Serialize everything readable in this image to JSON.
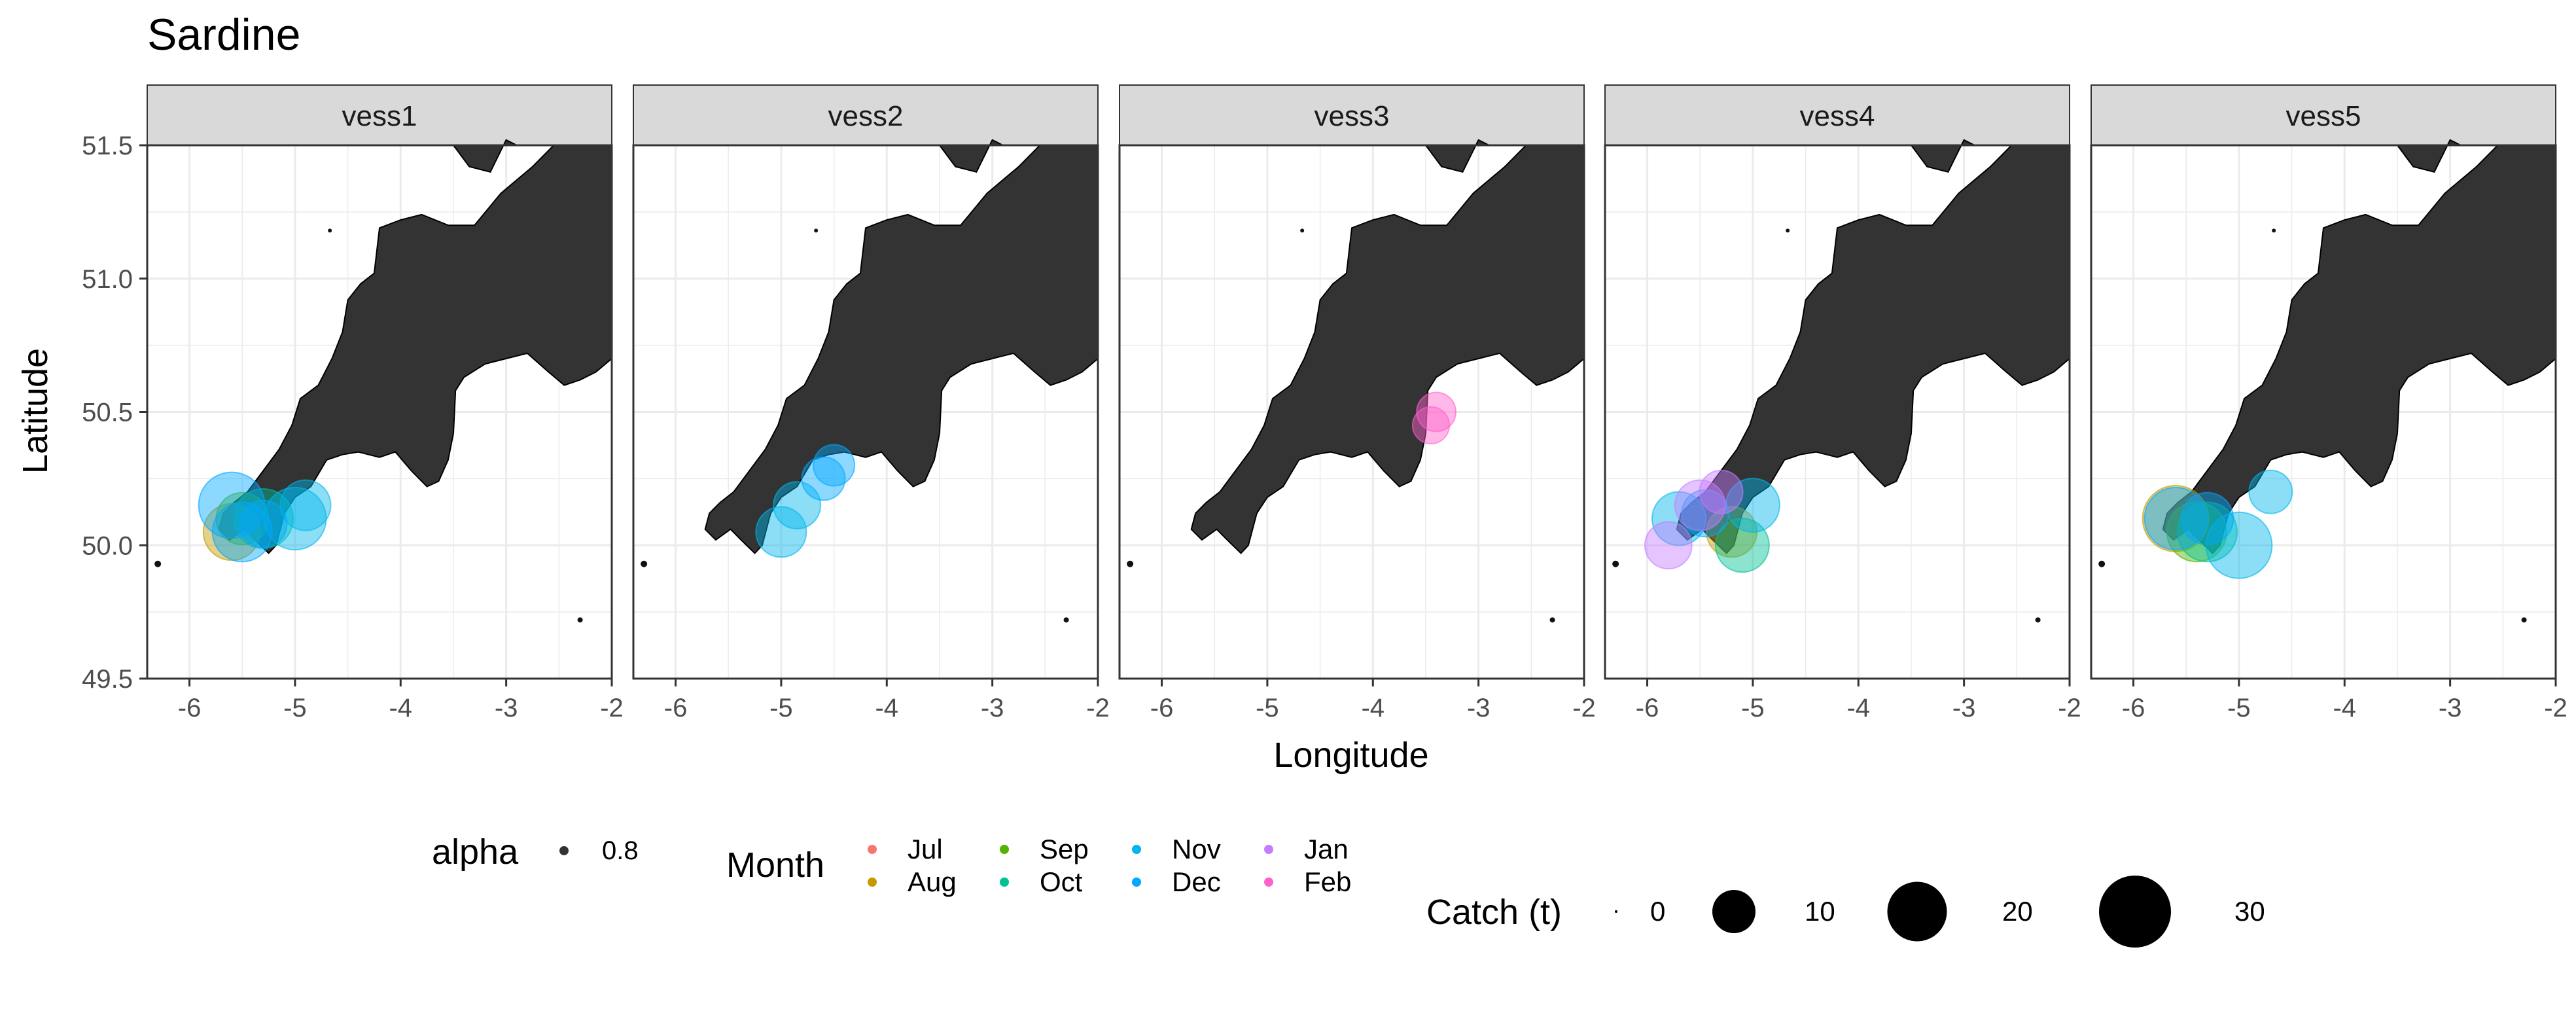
{
  "chart_data": {
    "type": "scatter",
    "title": "Sardine",
    "xlabel": "Longitude",
    "ylabel": "Latitude",
    "xlim": [
      -6.4,
      -2.0
    ],
    "ylim": [
      49.5,
      51.5
    ],
    "x_ticks": [
      -6,
      -5,
      -4,
      -3,
      -2
    ],
    "y_ticks": [
      49.5,
      50.0,
      50.5,
      51.0,
      51.5
    ],
    "x_tick_labels": [
      "-6",
      "-5",
      "-4",
      "-3",
      "-2"
    ],
    "y_tick_labels": [
      "49.5",
      "50.0",
      "50.5",
      "51.0",
      "51.5"
    ],
    "grid": true,
    "land_color": "#333333",
    "panel_strip_color": "#d9d9d9",
    "facets": [
      "vess1",
      "vess2",
      "vess3",
      "vess4",
      "vess5"
    ],
    "months": [
      {
        "label": "Jul",
        "color": "#F8766D"
      },
      {
        "label": "Aug",
        "color": "#C49A00"
      },
      {
        "label": "Sep",
        "color": "#53B400"
      },
      {
        "label": "Oct",
        "color": "#00C094"
      },
      {
        "label": "Nov",
        "color": "#00B6EB"
      },
      {
        "label": "Dec",
        "color": "#00A9FF"
      },
      {
        "label": "Jan",
        "color": "#C77CFF"
      },
      {
        "label": "Feb",
        "color": "#FF61CC"
      }
    ],
    "alpha_legend": {
      "title": "alpha",
      "value": "0.8"
    },
    "month_legend_title": "Month",
    "size_legend": {
      "title": "Catch (t)",
      "values": [
        0,
        10,
        20,
        30
      ],
      "labels": [
        "0",
        "10",
        "20",
        "30"
      ]
    },
    "points": {
      "vess1": [
        {
          "lon": -5.6,
          "lat": 50.05,
          "month": "Aug",
          "catch": 18
        },
        {
          "lon": -5.5,
          "lat": 50.1,
          "month": "Sep",
          "catch": 15
        },
        {
          "lon": -5.3,
          "lat": 50.1,
          "month": "Oct",
          "catch": 20
        },
        {
          "lon": -5.0,
          "lat": 50.1,
          "month": "Nov",
          "catch": 22
        },
        {
          "lon": -4.9,
          "lat": 50.15,
          "month": "Nov",
          "catch": 14
        },
        {
          "lon": -5.6,
          "lat": 50.15,
          "month": "Dec",
          "catch": 25
        },
        {
          "lon": -5.5,
          "lat": 50.05,
          "month": "Dec",
          "catch": 20
        },
        {
          "lon": -5.3,
          "lat": 50.08,
          "month": "Dec",
          "catch": 12
        }
      ],
      "vess2": [
        {
          "lon": -5.0,
          "lat": 50.05,
          "month": "Nov",
          "catch": 14
        },
        {
          "lon": -4.85,
          "lat": 50.15,
          "month": "Nov",
          "catch": 12
        },
        {
          "lon": -4.6,
          "lat": 50.25,
          "month": "Dec",
          "catch": 10
        },
        {
          "lon": -4.5,
          "lat": 50.3,
          "month": "Dec",
          "catch": 9
        }
      ],
      "vess3": [
        {
          "lon": -3.4,
          "lat": 50.5,
          "month": "Feb",
          "catch": 8
        },
        {
          "lon": -3.45,
          "lat": 50.45,
          "month": "Feb",
          "catch": 7
        }
      ],
      "vess4": [
        {
          "lon": -5.2,
          "lat": 50.05,
          "month": "Aug",
          "catch": 14
        },
        {
          "lon": -5.1,
          "lat": 50.0,
          "month": "Oct",
          "catch": 16
        },
        {
          "lon": -5.0,
          "lat": 50.15,
          "month": "Nov",
          "catch": 16
        },
        {
          "lon": -5.7,
          "lat": 50.1,
          "month": "Nov",
          "catch": 16
        },
        {
          "lon": -5.45,
          "lat": 50.12,
          "month": "Dec",
          "catch": 12
        },
        {
          "lon": -5.8,
          "lat": 50.0,
          "month": "Jan",
          "catch": 12
        },
        {
          "lon": -5.5,
          "lat": 50.15,
          "month": "Jan",
          "catch": 14
        },
        {
          "lon": -5.3,
          "lat": 50.2,
          "month": "Jan",
          "catch": 10
        }
      ],
      "vess5": [
        {
          "lon": -5.6,
          "lat": 50.1,
          "month": "Aug",
          "catch": 25
        },
        {
          "lon": -5.4,
          "lat": 50.05,
          "month": "Sep",
          "catch": 20
        },
        {
          "lon": -5.3,
          "lat": 50.05,
          "month": "Oct",
          "catch": 20
        },
        {
          "lon": -5.0,
          "lat": 50.0,
          "month": "Nov",
          "catch": 25
        },
        {
          "lon": -4.7,
          "lat": 50.2,
          "month": "Nov",
          "catch": 10
        },
        {
          "lon": -5.6,
          "lat": 50.1,
          "month": "Dec",
          "catch": 22
        },
        {
          "lon": -5.3,
          "lat": 50.1,
          "month": "Dec",
          "catch": 15
        }
      ]
    }
  }
}
